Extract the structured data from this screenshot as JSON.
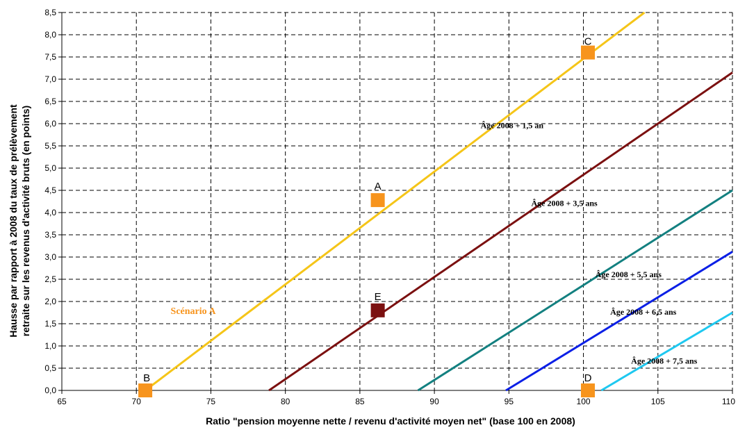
{
  "chart_data": {
    "type": "line",
    "title": "",
    "xlabel": "Ratio \"pension moyenne nette / revenu d'activité moyen net\" (base 100 en 2008)",
    "ylabel_line1": "Hausse par rapport à 2008 du taux de prélèvement",
    "ylabel_line2": "retraite sur les revenus d'activité bruts (en points)",
    "xlim": [
      65,
      110
    ],
    "ylim": [
      0,
      8.5
    ],
    "x_ticks": [
      65,
      70,
      75,
      80,
      85,
      90,
      95,
      100,
      105,
      110
    ],
    "x_tick_labels": [
      "65",
      "70",
      "75",
      "80",
      "85",
      "90",
      "95",
      "100",
      "105",
      "110"
    ],
    "y_ticks": [
      0,
      0.5,
      1,
      1.5,
      2,
      2.5,
      3,
      3.5,
      4,
      4.5,
      5,
      5.5,
      6,
      6.5,
      7,
      7.5,
      8,
      8.5
    ],
    "y_tick_labels": [
      "0,0",
      "0,5",
      "1,0",
      "1,5",
      "2,0",
      "2,5",
      "3,0",
      "3,5",
      "4,0",
      "4,5",
      "5,0",
      "5,5",
      "6,0",
      "6,5",
      "7,0",
      "7,5",
      "8,0",
      "8,5"
    ],
    "grid": true,
    "series": [
      {
        "label": "Âge 2008 + 1,5 an",
        "color": "#f5c518",
        "x": [
          70.6,
          104.1
        ],
        "y": [
          0,
          8.5
        ],
        "label_at": [
          93.1,
          5.9
        ]
      },
      {
        "label": "Âge 2008 + 3,5 ans",
        "color": "#7b1010",
        "x": [
          78.9,
          110
        ],
        "y": [
          0,
          7.15
        ],
        "label_at": [
          96.5,
          4.15
        ]
      },
      {
        "label": "Âge 2008 + 5,5 ans",
        "color": "#138080",
        "x": [
          88.9,
          110
        ],
        "y": [
          0,
          4.5
        ],
        "label_at": [
          100.8,
          2.55
        ]
      },
      {
        "label": "Âge 2008 + 6,5 ans",
        "color": "#0a1fe6",
        "x": [
          94.8,
          110
        ],
        "y": [
          0,
          3.12
        ],
        "label_at": [
          101.8,
          1.7
        ]
      },
      {
        "label": "Âge 2008 + 7,5 ans",
        "color": "#1ec8f0",
        "x": [
          101.2,
          110
        ],
        "y": [
          0,
          1.75
        ],
        "label_at": [
          103.2,
          0.6
        ]
      }
    ],
    "points": [
      {
        "label": "A",
        "x": 86.2,
        "y": 4.28,
        "color": "#f7941d"
      },
      {
        "label": "B",
        "x": 70.6,
        "y": 0,
        "color": "#f7941d"
      },
      {
        "label": "C",
        "x": 100.3,
        "y": 7.6,
        "color": "#f7941d"
      },
      {
        "label": "D",
        "x": 100.3,
        "y": 0,
        "color": "#f7941d"
      },
      {
        "label": "E",
        "x": 86.2,
        "y": 1.8,
        "color": "#7b1010"
      }
    ],
    "annotations": [
      {
        "text": "Scénario A",
        "x": 72.3,
        "y": 1.72,
        "color": "#f7941d"
      }
    ]
  }
}
